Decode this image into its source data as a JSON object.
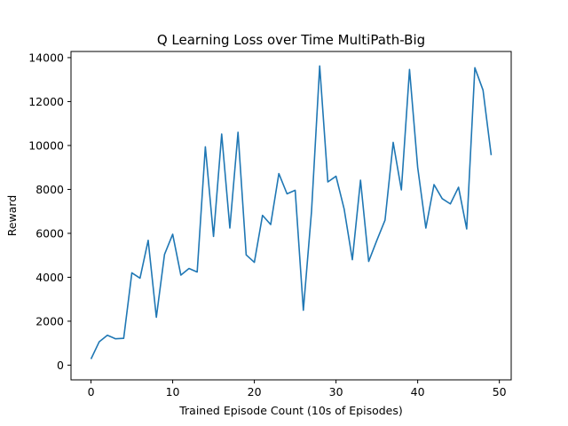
{
  "chart_data": {
    "type": "line",
    "title": "Q Learning Loss over Time MultiPath-Big",
    "xlabel": "Trained Episode Count (10s of Episodes)",
    "ylabel": "Reward",
    "xlim": [
      -2.45,
      51.45
    ],
    "ylim": [
      -670,
      14280
    ],
    "xticks": [
      0,
      10,
      20,
      30,
      40,
      50
    ],
    "yticks": [
      0,
      2000,
      4000,
      6000,
      8000,
      10000,
      12000,
      14000
    ],
    "grid": false,
    "series": [
      {
        "color": "#1f77b4",
        "x": [
          0,
          1,
          2,
          3,
          4,
          5,
          6,
          7,
          8,
          9,
          10,
          11,
          12,
          13,
          14,
          15,
          16,
          17,
          18,
          19,
          20,
          21,
          22,
          23,
          24,
          25,
          26,
          27,
          28,
          29,
          30,
          31,
          32,
          33,
          34,
          35,
          36,
          37,
          38,
          39,
          40,
          41,
          42,
          43,
          44,
          45,
          46,
          47,
          48,
          49
        ],
        "values": [
          280,
          1060,
          1360,
          1200,
          1220,
          4200,
          3960,
          5680,
          2180,
          5040,
          5960,
          4100,
          4400,
          4240,
          9940,
          5860,
          10520,
          6240,
          10600,
          5020,
          4680,
          6820,
          6400,
          8720,
          7800,
          7960,
          2500,
          7000,
          13620,
          8340,
          8600,
          7100,
          4800,
          8420,
          4720,
          5680,
          6600,
          10140,
          7980,
          13460,
          9000,
          6240,
          8220,
          7580,
          7340,
          8100,
          6200,
          13540,
          12520,
          9560
        ]
      }
    ]
  }
}
